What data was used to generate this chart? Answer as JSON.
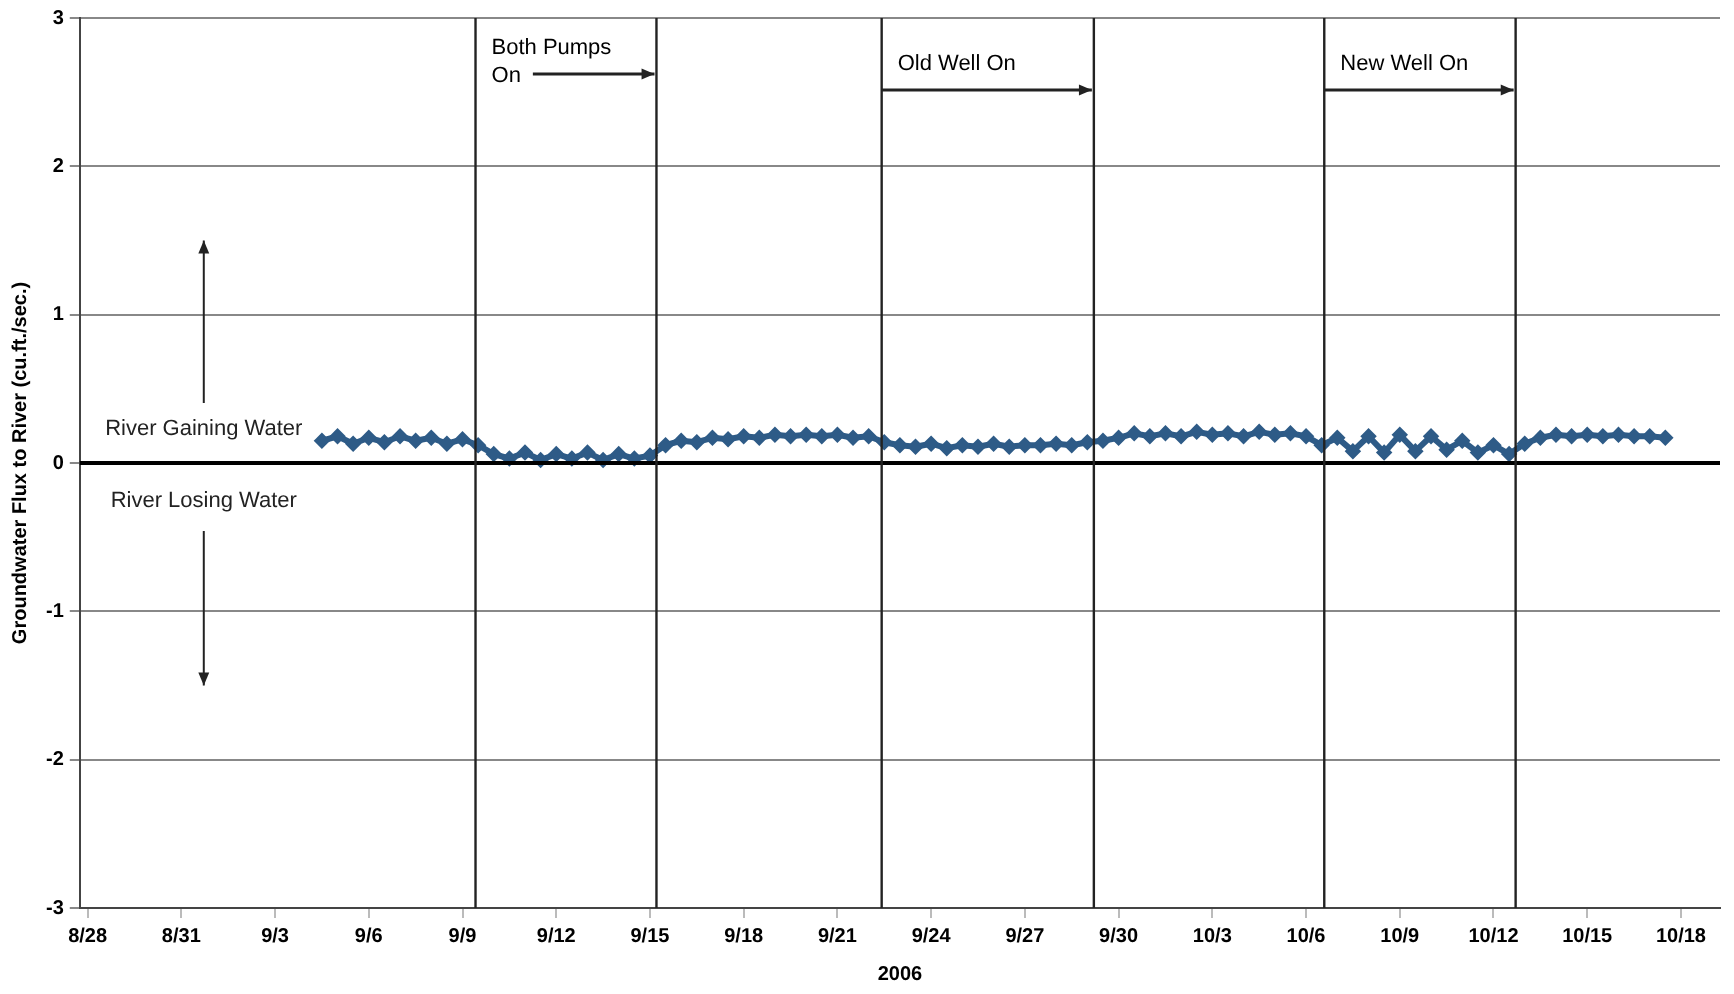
{
  "chart_data": {
    "type": "line",
    "xlabel": "2006",
    "ylabel": "Groundwater Flux to River (cu.ft./sec.)",
    "xlim": [
      "2006-08-27T18:00",
      "2006-10-19T06:00"
    ],
    "xticks": [
      {
        "value": "2006-08-28",
        "label": "8/28"
      },
      {
        "value": "2006-08-31",
        "label": "8/31"
      },
      {
        "value": "2006-09-03",
        "label": "9/3"
      },
      {
        "value": "2006-09-06",
        "label": "9/6"
      },
      {
        "value": "2006-09-09",
        "label": "9/9"
      },
      {
        "value": "2006-09-12",
        "label": "9/12"
      },
      {
        "value": "2006-09-15",
        "label": "9/15"
      },
      {
        "value": "2006-09-18",
        "label": "9/18"
      },
      {
        "value": "2006-09-21",
        "label": "9/21"
      },
      {
        "value": "2006-09-24",
        "label": "9/24"
      },
      {
        "value": "2006-09-27",
        "label": "9/27"
      },
      {
        "value": "2006-09-30",
        "label": "9/30"
      },
      {
        "value": "2006-10-03",
        "label": "10/3"
      },
      {
        "value": "2006-10-06",
        "label": "10/6"
      },
      {
        "value": "2006-10-09",
        "label": "10/9"
      },
      {
        "value": "2006-10-12",
        "label": "10/12"
      },
      {
        "value": "2006-10-15",
        "label": "10/15"
      },
      {
        "value": "2006-10-18",
        "label": "10/18"
      }
    ],
    "ylim": [
      -3,
      3
    ],
    "yticks": [
      -3,
      -2,
      -1,
      0,
      1,
      2,
      3
    ],
    "grid": "y",
    "marker": "diamond",
    "line_style": "solid",
    "series": [
      {
        "color": "#2e5b87",
        "x": [
          "2006-09-04T12:00",
          "2006-09-05T00:00",
          "2006-09-05T12:00",
          "2006-09-06T00:00",
          "2006-09-06T12:00",
          "2006-09-07T00:00",
          "2006-09-07T12:00",
          "2006-09-08T00:00",
          "2006-09-08T12:00",
          "2006-09-09T00:00",
          "2006-09-09T12:00",
          "2006-09-10T00:00",
          "2006-09-10T12:00",
          "2006-09-11T00:00",
          "2006-09-11T12:00",
          "2006-09-12T00:00",
          "2006-09-12T12:00",
          "2006-09-13T00:00",
          "2006-09-13T12:00",
          "2006-09-14T00:00",
          "2006-09-14T12:00",
          "2006-09-15T00:00",
          "2006-09-15T12:00",
          "2006-09-16T00:00",
          "2006-09-16T12:00",
          "2006-09-17T00:00",
          "2006-09-17T12:00",
          "2006-09-18T00:00",
          "2006-09-18T12:00",
          "2006-09-19T00:00",
          "2006-09-19T12:00",
          "2006-09-20T00:00",
          "2006-09-20T12:00",
          "2006-09-21T00:00",
          "2006-09-21T12:00",
          "2006-09-22T00:00",
          "2006-09-22T12:00",
          "2006-09-23T00:00",
          "2006-09-23T12:00",
          "2006-09-24T00:00",
          "2006-09-24T12:00",
          "2006-09-25T00:00",
          "2006-09-25T12:00",
          "2006-09-26T00:00",
          "2006-09-26T12:00",
          "2006-09-27T00:00",
          "2006-09-27T12:00",
          "2006-09-28T00:00",
          "2006-09-28T12:00",
          "2006-09-29T00:00",
          "2006-09-29T12:00",
          "2006-09-30T00:00",
          "2006-09-30T12:00",
          "2006-10-01T00:00",
          "2006-10-01T12:00",
          "2006-10-02T00:00",
          "2006-10-02T12:00",
          "2006-10-03T00:00",
          "2006-10-03T12:00",
          "2006-10-04T00:00",
          "2006-10-04T12:00",
          "2006-10-05T00:00",
          "2006-10-05T12:00",
          "2006-10-06T00:00",
          "2006-10-06T12:00",
          "2006-10-07T00:00",
          "2006-10-07T12:00",
          "2006-10-08T00:00",
          "2006-10-08T12:00",
          "2006-10-09T00:00",
          "2006-10-09T12:00",
          "2006-10-10T00:00",
          "2006-10-10T12:00",
          "2006-10-11T00:00",
          "2006-10-11T12:00",
          "2006-10-12T00:00",
          "2006-10-12T12:00",
          "2006-10-13T00:00",
          "2006-10-13T12:00",
          "2006-10-14T00:00",
          "2006-10-14T12:00",
          "2006-10-15T00:00",
          "2006-10-15T12:00",
          "2006-10-16T00:00",
          "2006-10-16T12:00",
          "2006-10-17T00:00",
          "2006-10-17T12:00"
        ],
        "values": [
          0.15,
          0.18,
          0.13,
          0.17,
          0.14,
          0.18,
          0.15,
          0.17,
          0.13,
          0.16,
          0.12,
          0.06,
          0.03,
          0.07,
          0.02,
          0.06,
          0.03,
          0.07,
          0.02,
          0.06,
          0.03,
          0.05,
          0.12,
          0.15,
          0.14,
          0.17,
          0.16,
          0.18,
          0.17,
          0.19,
          0.18,
          0.19,
          0.18,
          0.19,
          0.17,
          0.18,
          0.14,
          0.12,
          0.11,
          0.13,
          0.1,
          0.12,
          0.11,
          0.13,
          0.11,
          0.12,
          0.12,
          0.13,
          0.12,
          0.14,
          0.15,
          0.17,
          0.2,
          0.18,
          0.2,
          0.18,
          0.21,
          0.19,
          0.2,
          0.18,
          0.21,
          0.19,
          0.2,
          0.18,
          0.12,
          0.17,
          0.08,
          0.18,
          0.07,
          0.19,
          0.08,
          0.18,
          0.09,
          0.15,
          0.07,
          0.12,
          0.06,
          0.13,
          0.17,
          0.19,
          0.18,
          0.19,
          0.18,
          0.19,
          0.18,
          0.18,
          0.17
        ]
      }
    ],
    "ref_lines": [
      {
        "axis": "y",
        "value": 0,
        "color": "#000000"
      },
      {
        "axis": "x",
        "value": "2006-09-09T10:00",
        "label": "Both Pumps On",
        "color": "#222222"
      },
      {
        "axis": "x",
        "value": "2006-09-15T05:00",
        "color": "#222222"
      },
      {
        "axis": "x",
        "value": "2006-09-22T10:00",
        "label": "Old Well On",
        "color": "#222222"
      },
      {
        "axis": "x",
        "value": "2006-09-29T05:00",
        "color": "#222222"
      },
      {
        "axis": "x",
        "value": "2006-10-06T14:00",
        "label": "New Well On",
        "color": "#222222"
      },
      {
        "axis": "x",
        "value": "2006-10-12T17:00",
        "color": "#222222"
      }
    ],
    "annotations": [
      "River Gaining Water",
      "River Losing Water"
    ]
  }
}
